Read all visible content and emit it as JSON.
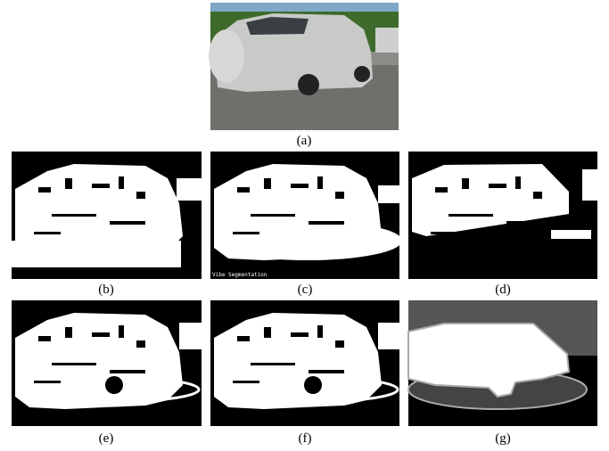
{
  "figure": {
    "panels": [
      {
        "label": "(a)"
      },
      {
        "label": "(b)"
      },
      {
        "label": "(c)",
        "overlay": "Vibe Segmentation"
      },
      {
        "label": "(d)"
      },
      {
        "label": "(e)"
      },
      {
        "label": "(f)"
      },
      {
        "label": "(g)"
      }
    ]
  }
}
